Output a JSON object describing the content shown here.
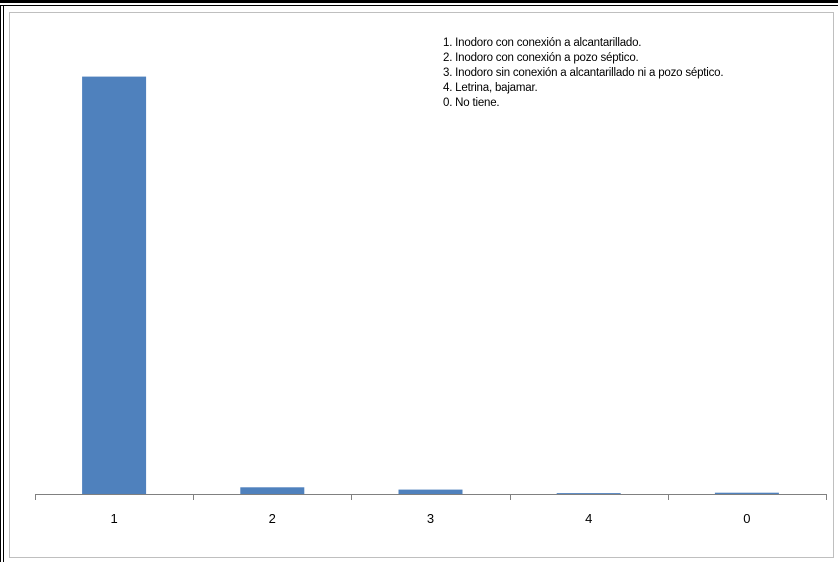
{
  "chart_data": {
    "type": "bar",
    "categories": [
      "1",
      "2",
      "3",
      "4",
      "0"
    ],
    "values": [
      0.94,
      0.015,
      0.01,
      0.002,
      0.003
    ],
    "ylim": [
      0,
      1
    ],
    "grid": false,
    "bar_color": "#4f81bd",
    "axis_color": "#808080",
    "legend_placement": "top-right",
    "legend_entries": [
      "1. Inodoro con conexión a alcantarillado.",
      "2. Inodoro con conexión a pozo séptico.",
      "3. Inodoro sin conexión a alcantarillado ni a pozo séptico.",
      "4. Letrina, bajamar.",
      "0. No tiene."
    ]
  }
}
